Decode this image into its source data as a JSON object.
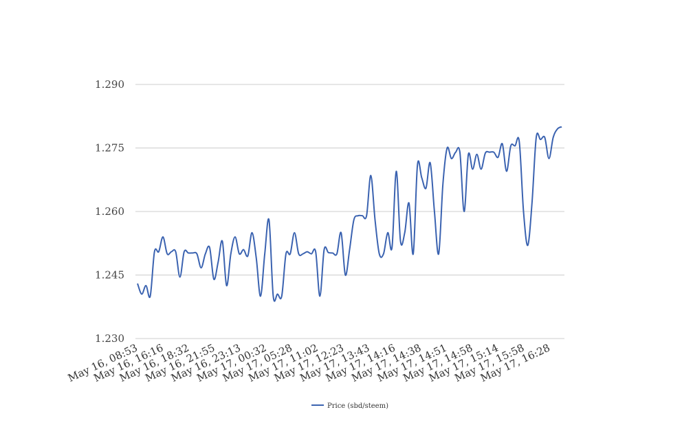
{
  "chart_data": {
    "type": "line",
    "title": "",
    "xlabel": "",
    "ylabel": "",
    "ylim": [
      1.23,
      1.29
    ],
    "y_ticks": [
      "1.230",
      "1.245",
      "1.260",
      "1.275",
      "1.290"
    ],
    "y_tick_values": [
      1.23,
      1.245,
      1.26,
      1.275,
      1.29
    ],
    "x_tick_labels": [
      "May 16, 08:53",
      "May 16, 16:16",
      "May 16, 18:32",
      "May 16, 21:55",
      "May 16, 23:13",
      "May 17, 00:32",
      "May 17, 05:28",
      "May 17, 11:02",
      "May 17, 12:23",
      "May 17, 13:43",
      "May 17, 14:16",
      "May 17, 14:38",
      "May 17, 14:51",
      "May 17, 14:58",
      "May 17, 15:14",
      "May 17, 15:58",
      "May 17, 16:28"
    ],
    "grid": true,
    "legend_position": "bottom",
    "series": [
      {
        "name": "Price (sbd/steem)",
        "color": "#3a62b0",
        "values": [
          1.243,
          1.2405,
          1.2425,
          1.24,
          1.2505,
          1.2505,
          1.254,
          1.25,
          1.2505,
          1.2505,
          1.2445,
          1.2505,
          1.2502,
          1.2502,
          1.25,
          1.2467,
          1.25,
          1.2515,
          1.244,
          1.248,
          1.253,
          1.2425,
          1.25,
          1.254,
          1.25,
          1.251,
          1.2495,
          1.255,
          1.249,
          1.24,
          1.25,
          1.258,
          1.24,
          1.2405,
          1.24,
          1.25,
          1.25,
          1.255,
          1.25,
          1.25,
          1.2505,
          1.25,
          1.2505,
          1.24,
          1.251,
          1.2503,
          1.2502,
          1.25,
          1.255,
          1.245,
          1.251,
          1.258,
          1.259,
          1.259,
          1.259,
          1.2685,
          1.258,
          1.25,
          1.25,
          1.255,
          1.2515,
          1.2695,
          1.253,
          1.255,
          1.262,
          1.25,
          1.271,
          1.268,
          1.2655,
          1.2715,
          1.26,
          1.25,
          1.2665,
          1.275,
          1.2725,
          1.274,
          1.274,
          1.26,
          1.2735,
          1.27,
          1.2735,
          1.27,
          1.2738,
          1.274,
          1.274,
          1.2728,
          1.276,
          1.2695,
          1.2755,
          1.2755,
          1.2765,
          1.26,
          1.252,
          1.262,
          1.2775,
          1.277,
          1.2775,
          1.2725,
          1.2775,
          1.2795,
          1.28
        ]
      }
    ]
  }
}
